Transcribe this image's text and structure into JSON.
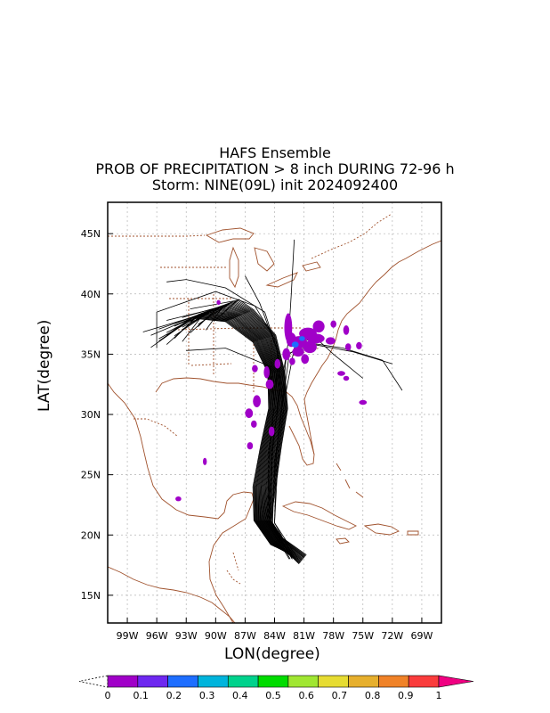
{
  "title": {
    "line1": "HAFS Ensemble",
    "line2": "PROB OF PRECIPITATION > 8 inch DURING 72-96 h",
    "line3": "Storm: NINE(09L) init 2024092400"
  },
  "axes": {
    "xlabel": "LON(degree)",
    "ylabel": "LAT(degree)",
    "lon_range": [
      -101,
      -67
    ],
    "lat_range": [
      12.7,
      47.6
    ],
    "lon_ticks": [
      {
        "value": -99,
        "label": "99W"
      },
      {
        "value": -96,
        "label": "96W"
      },
      {
        "value": -93,
        "label": "93W"
      },
      {
        "value": -90,
        "label": "90W"
      },
      {
        "value": -87,
        "label": "87W"
      },
      {
        "value": -84,
        "label": "84W"
      },
      {
        "value": -81,
        "label": "81W"
      },
      {
        "value": -78,
        "label": "78W"
      },
      {
        "value": -75,
        "label": "75W"
      },
      {
        "value": -72,
        "label": "72W"
      },
      {
        "value": -69,
        "label": "69W"
      }
    ],
    "lat_ticks": [
      {
        "value": 15,
        "label": "15N"
      },
      {
        "value": 20,
        "label": "20N"
      },
      {
        "value": 25,
        "label": "25N"
      },
      {
        "value": 30,
        "label": "30N"
      },
      {
        "value": 35,
        "label": "35N"
      },
      {
        "value": 40,
        "label": "40N"
      },
      {
        "value": 45,
        "label": "45N"
      }
    ],
    "grid": true
  },
  "colorbar": {
    "ticks": [
      "0",
      "0.1",
      "0.2",
      "0.3",
      "0.4",
      "0.5",
      "0.6",
      "0.7",
      "0.8",
      "0.9",
      "1"
    ],
    "colors": [
      "#a000c8",
      "#6e28f0",
      "#1e6eff",
      "#00b4dc",
      "#00d28c",
      "#00dc00",
      "#a0e632",
      "#e6dc32",
      "#e6af2d",
      "#f08228",
      "#fa3c3c"
    ],
    "over_color": "#f00082"
  },
  "precip_color": "#a000c8",
  "track_color": "#000000",
  "map_color": "#a0522d",
  "grid_color": "#b4b4b4"
}
